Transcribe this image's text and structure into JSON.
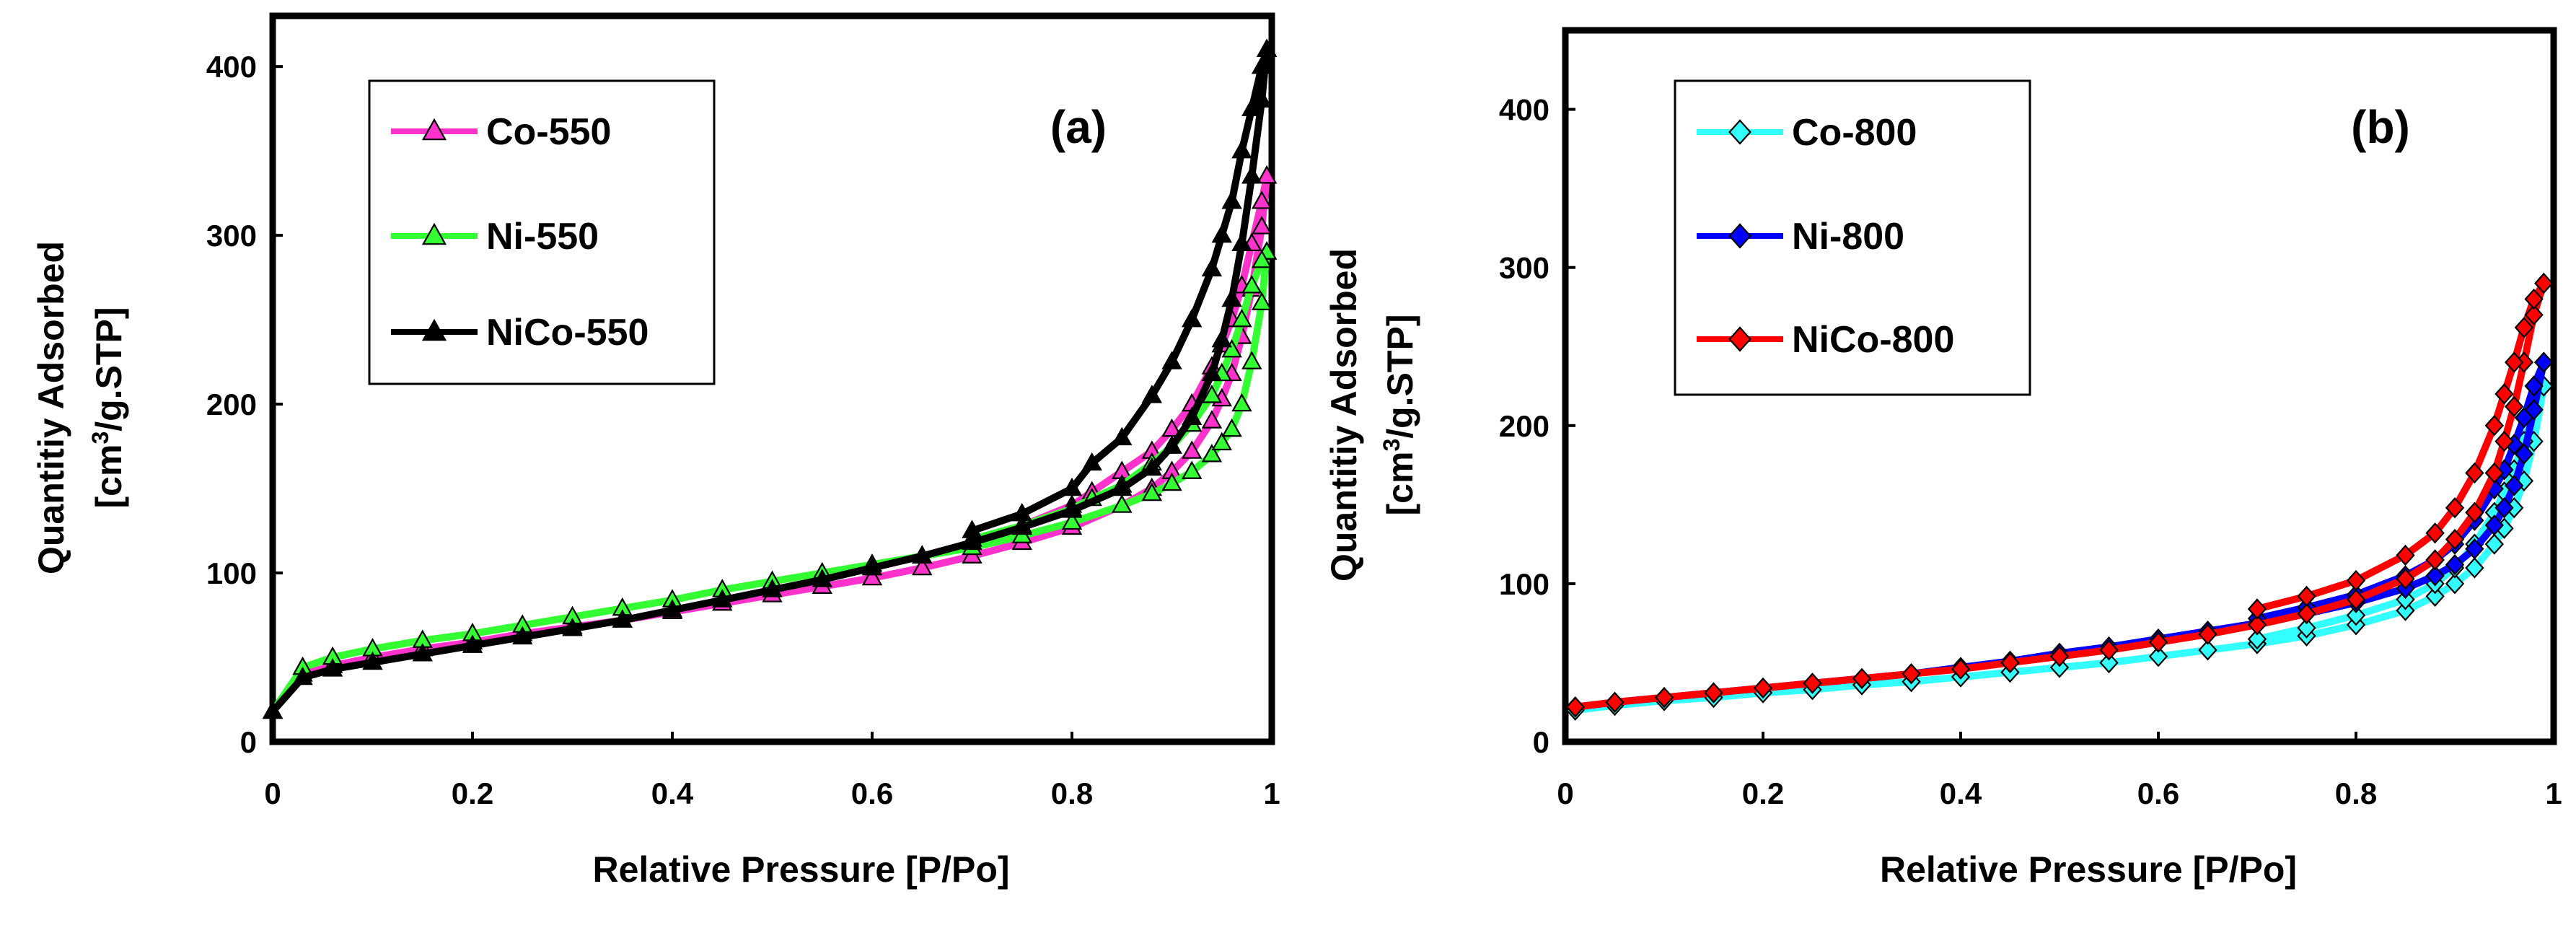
{
  "chart_data": [
    {
      "type": "line",
      "panel_label": "(a)",
      "xlabel": "Relative Pressure [P/Po]",
      "ylabel_line1": "Quantitiy Adsorbed",
      "ylabel_line2_pre": "[cm",
      "ylabel_line2_sup": "3",
      "ylabel_line2_post": "/g.STP]",
      "xlim": [
        0,
        1
      ],
      "ylim": [
        0,
        430
      ],
      "xticks": [
        0,
        0.2,
        0.4,
        0.6,
        0.8,
        1
      ],
      "xtick_labels": [
        "0",
        "0.2",
        "0.4",
        "0.6",
        "0.8",
        "1"
      ],
      "yticks": [
        0,
        100,
        200,
        300,
        400
      ],
      "ytick_labels": [
        "0",
        "100",
        "200",
        "300",
        "400"
      ],
      "legend_position": "top-left",
      "marker": "triangle",
      "series": [
        {
          "name": "Co-550",
          "color": "#ff33cc",
          "adsorption": {
            "x": [
              0.0,
              0.03,
              0.06,
              0.1,
              0.15,
              0.2,
              0.25,
              0.3,
              0.35,
              0.4,
              0.45,
              0.5,
              0.55,
              0.6,
              0.65,
              0.7,
              0.75,
              0.8,
              0.85,
              0.88,
              0.9,
              0.92,
              0.94,
              0.95,
              0.96,
              0.97,
              0.98,
              0.99,
              0.995
            ],
            "y": [
              18,
              40,
              45,
              50,
              55,
              59,
              64,
              68,
              72,
              77,
              82,
              87,
              92,
              97,
              103,
              110,
              118,
              127,
              140,
              150,
              160,
              172,
              190,
              203,
              218,
              240,
              268,
              305,
              335
            ]
          },
          "desorption": {
            "x": [
              0.995,
              0.99,
              0.98,
              0.97,
              0.96,
              0.95,
              0.94,
              0.92,
              0.9,
              0.88,
              0.85,
              0.82,
              0.8,
              0.75,
              0.7,
              0.65,
              0.6
            ],
            "y": [
              335,
              320,
              295,
              270,
              250,
              235,
              222,
              200,
              185,
              172,
              160,
              148,
              140,
              128,
              118,
              110,
              103
            ]
          }
        },
        {
          "name": "Ni-550",
          "color": "#33ff33",
          "adsorption": {
            "x": [
              0.0,
              0.03,
              0.06,
              0.1,
              0.15,
              0.2,
              0.25,
              0.3,
              0.35,
              0.4,
              0.45,
              0.5,
              0.55,
              0.6,
              0.65,
              0.7,
              0.75,
              0.8,
              0.85,
              0.88,
              0.9,
              0.92,
              0.94,
              0.95,
              0.96,
              0.97,
              0.98,
              0.99,
              0.995
            ],
            "y": [
              18,
              44,
              50,
              55,
              60,
              64,
              69,
              74,
              79,
              84,
              90,
              95,
              100,
              105,
              110,
              115,
              122,
              130,
              140,
              147,
              153,
              160,
              170,
              177,
              185,
              200,
              225,
              260,
              290
            ]
          },
          "desorption": {
            "x": [
              0.995,
              0.99,
              0.98,
              0.97,
              0.96,
              0.95,
              0.94,
              0.92,
              0.9,
              0.88,
              0.85,
              0.82,
              0.8,
              0.75,
              0.7
            ],
            "y": [
              290,
              285,
              270,
              250,
              232,
              218,
              205,
              188,
              175,
              165,
              152,
              144,
              138,
              128,
              120
            ]
          }
        },
        {
          "name": "NiCo-550",
          "color": "#000000",
          "adsorption": {
            "x": [
              0.0,
              0.03,
              0.06,
              0.1,
              0.15,
              0.2,
              0.25,
              0.3,
              0.35,
              0.4,
              0.45,
              0.5,
              0.55,
              0.6,
              0.65,
              0.7,
              0.75,
              0.8,
              0.85,
              0.88,
              0.9,
              0.92,
              0.94,
              0.95,
              0.96,
              0.97,
              0.98,
              0.99,
              0.995
            ],
            "y": [
              18,
              38,
              43,
              47,
              52,
              57,
              62,
              67,
              72,
              78,
              84,
              90,
              96,
              103,
              110,
              118,
              127,
              137,
              150,
              162,
              175,
              192,
              218,
              238,
              262,
              295,
              335,
              380,
              410
            ]
          },
          "desorption": {
            "x": [
              0.995,
              0.99,
              0.98,
              0.97,
              0.96,
              0.95,
              0.94,
              0.92,
              0.9,
              0.88,
              0.85,
              0.82,
              0.8,
              0.75,
              0.7
            ],
            "y": [
              410,
              400,
              375,
              350,
              320,
              300,
              280,
              250,
              225,
              205,
              180,
              165,
              150,
              135,
              125
            ]
          }
        }
      ]
    },
    {
      "type": "line",
      "panel_label": "(b)",
      "xlabel": "Relative Pressure [P/Po]",
      "ylabel_line1": "Quantitiy Adsorbed",
      "ylabel_line2_pre": "[cm",
      "ylabel_line2_sup": "3",
      "ylabel_line2_post": "/g.STP]",
      "xlim": [
        0,
        1
      ],
      "ylim": [
        0,
        450
      ],
      "xticks": [
        0,
        0.2,
        0.4,
        0.6,
        0.8,
        1
      ],
      "xtick_labels": [
        "0",
        "0.2",
        "0.4",
        "0.6",
        "0.8",
        "1"
      ],
      "yticks": [
        0,
        100,
        200,
        300,
        400
      ],
      "ytick_labels": [
        "0",
        "100",
        "200",
        "300",
        "400"
      ],
      "legend_position": "top-left",
      "marker": "diamond",
      "series": [
        {
          "name": "Co-800",
          "color": "#33ffff",
          "adsorption": {
            "x": [
              0.01,
              0.05,
              0.1,
              0.15,
              0.2,
              0.25,
              0.3,
              0.35,
              0.4,
              0.45,
              0.5,
              0.55,
              0.6,
              0.65,
              0.7,
              0.75,
              0.8,
              0.85,
              0.88,
              0.9,
              0.92,
              0.94,
              0.95,
              0.96,
              0.97,
              0.98,
              0.99
            ],
            "y": [
              20,
              23,
              26,
              28,
              31,
              33,
              36,
              38,
              41,
              44,
              47,
              50,
              54,
              58,
              62,
              67,
              74,
              83,
              92,
              100,
              110,
              125,
              135,
              148,
              165,
              190,
              225
            ]
          },
          "desorption": {
            "x": [
              0.99,
              0.98,
              0.97,
              0.96,
              0.95,
              0.94,
              0.92,
              0.9,
              0.88,
              0.85,
              0.8,
              0.75,
              0.7
            ],
            "y": [
              225,
              210,
              190,
              172,
              158,
              145,
              125,
              110,
              100,
              90,
              80,
              72,
              65
            ]
          }
        },
        {
          "name": "Ni-800",
          "color": "#0000ff",
          "adsorption": {
            "x": [
              0.01,
              0.05,
              0.1,
              0.15,
              0.2,
              0.25,
              0.3,
              0.35,
              0.4,
              0.45,
              0.5,
              0.55,
              0.6,
              0.65,
              0.7,
              0.75,
              0.8,
              0.85,
              0.88,
              0.9,
              0.92,
              0.94,
              0.95,
              0.96,
              0.97,
              0.98,
              0.99
            ],
            "y": [
              22,
              25,
              28,
              31,
              34,
              37,
              40,
              43,
              47,
              51,
              56,
              60,
              65,
              70,
              75,
              81,
              88,
              97,
              105,
              112,
              122,
              137,
              148,
              162,
              182,
              210,
              240
            ]
          },
          "desorption": {
            "x": [
              0.99,
              0.98,
              0.97,
              0.96,
              0.95,
              0.94,
              0.92,
              0.9,
              0.88,
              0.85,
              0.8,
              0.75,
              0.7
            ],
            "y": [
              240,
              225,
              205,
              188,
              172,
              160,
              140,
              125,
              115,
              105,
              93,
              85,
              78
            ]
          }
        },
        {
          "name": "NiCo-800",
          "color": "#ff0000",
          "adsorption": {
            "x": [
              0.01,
              0.05,
              0.1,
              0.15,
              0.2,
              0.25,
              0.3,
              0.35,
              0.4,
              0.45,
              0.5,
              0.55,
              0.6,
              0.65,
              0.7,
              0.75,
              0.8,
              0.85,
              0.88,
              0.9,
              0.92,
              0.94,
              0.95,
              0.96,
              0.97,
              0.98,
              0.99
            ],
            "y": [
              22,
              25,
              28,
              31,
              34,
              37,
              40,
              43,
              46,
              50,
              54,
              58,
              63,
              68,
              74,
              81,
              90,
              103,
              115,
              128,
              145,
              170,
              190,
              212,
              240,
              270,
              290
            ]
          },
          "desorption": {
            "x": [
              0.99,
              0.98,
              0.97,
              0.96,
              0.95,
              0.94,
              0.92,
              0.9,
              0.88,
              0.85,
              0.8,
              0.75,
              0.7
            ],
            "y": [
              290,
              280,
              262,
              240,
              220,
              200,
              170,
              148,
              132,
              118,
              102,
              92,
              84
            ]
          }
        }
      ]
    }
  ]
}
